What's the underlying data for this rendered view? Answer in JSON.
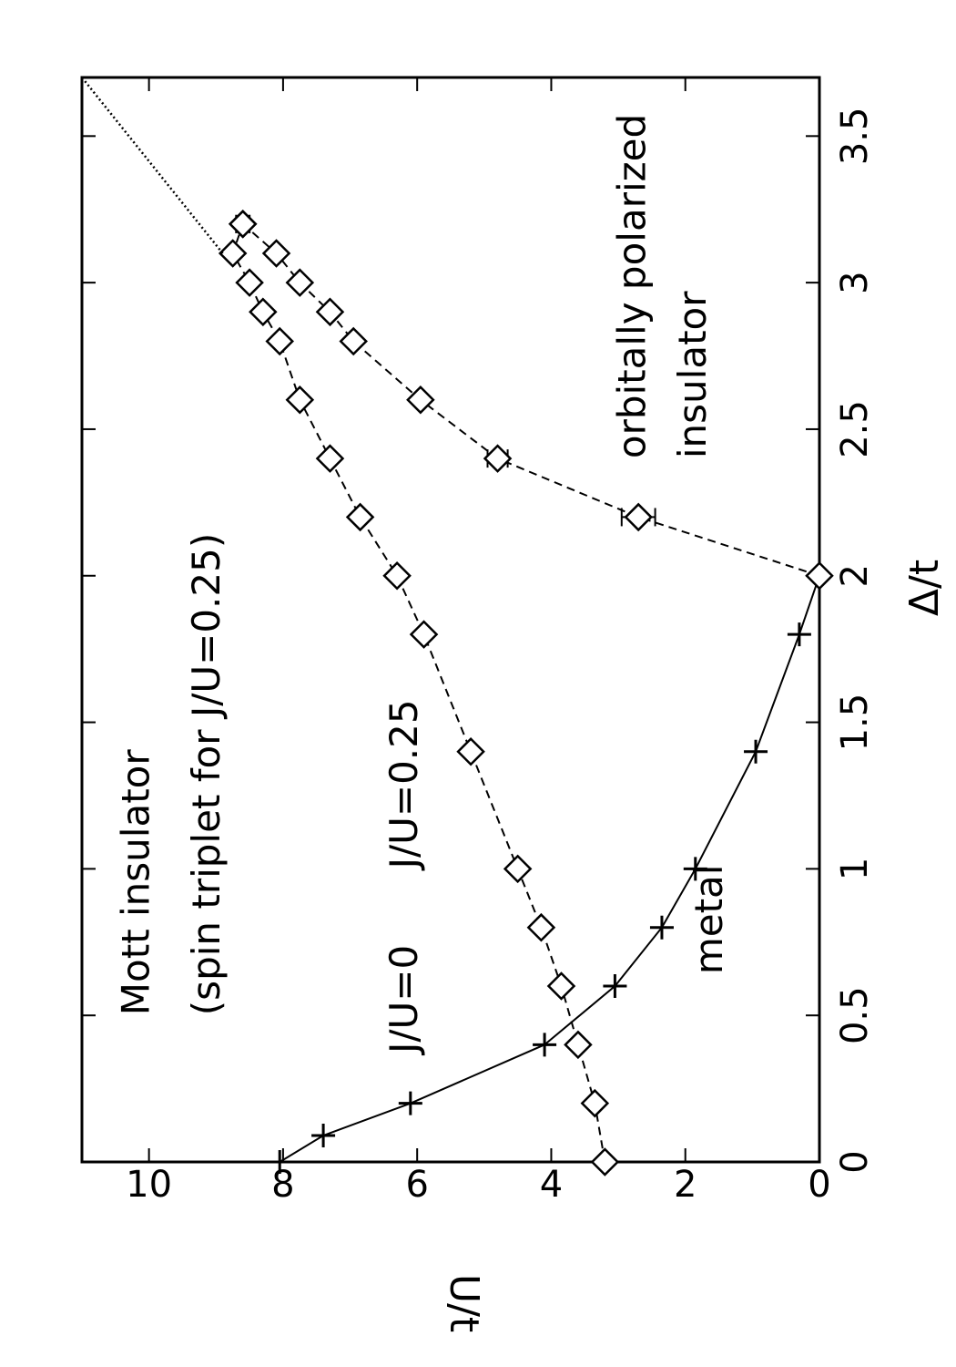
{
  "chart_data": {
    "type": "scatter",
    "xlabel": "Δ/t",
    "ylabel": "U/t",
    "xlim": [
      0,
      3.7
    ],
    "ylim": [
      0,
      11
    ],
    "x_ticks": [
      0,
      0.5,
      1,
      1.5,
      2,
      2.5,
      3,
      3.5
    ],
    "y_ticks": [
      0,
      2,
      4,
      6,
      8,
      10
    ],
    "grid": false,
    "annotations": [
      {
        "text": "Mott insulator",
        "x": 0.5,
        "y": 10.0
      },
      {
        "text": "(spin triplet for J/U=0.25)",
        "x": 0.5,
        "y": 8.95
      },
      {
        "text": "J/U=0",
        "x": 0.37,
        "y": 6.0
      },
      {
        "text": "J/U=0.25",
        "x": 1.0,
        "y": 6.0
      },
      {
        "text": "metal",
        "x": 0.64,
        "y": 1.45
      },
      {
        "text": "orbitally polarized",
        "x": 2.4,
        "y": 2.6
      },
      {
        "text": "insulator",
        "x": 2.4,
        "y": 1.7
      }
    ],
    "series": [
      {
        "key": "j0",
        "marker": "plus",
        "line": "solid",
        "x": [
          0,
          0.09,
          0.2,
          0.4,
          0.6,
          0.8,
          1.0,
          1.4,
          1.8,
          2.0
        ],
        "y": [
          8.05,
          7.4,
          6.1,
          4.1,
          3.05,
          2.35,
          1.85,
          0.95,
          0.3,
          0
        ],
        "yerr": [
          0,
          0,
          0,
          0,
          0,
          0,
          0,
          0,
          0,
          0
        ]
      },
      {
        "key": "j025_upper",
        "marker": "diamond",
        "line": "dashed",
        "x": [
          0,
          0.2,
          0.4,
          0.6,
          0.8,
          1.0,
          1.4,
          1.8,
          2.0,
          2.2,
          2.4,
          2.6,
          2.8,
          2.9,
          3.0,
          3.1,
          3.2
        ],
        "y": [
          3.2,
          3.35,
          3.6,
          3.85,
          4.15,
          4.5,
          5.2,
          5.9,
          6.3,
          6.85,
          7.3,
          7.75,
          8.05,
          8.3,
          8.5,
          8.75,
          8.6
        ],
        "yerr": [
          0,
          0,
          0,
          0,
          0,
          0,
          0,
          0,
          0,
          0,
          0,
          0,
          0,
          0,
          0,
          0,
          0.1
        ]
      },
      {
        "key": "j025_lower",
        "marker": "diamond",
        "line": "dashed",
        "x": [
          2.0,
          2.2,
          2.4,
          2.6,
          2.8,
          2.9,
          3.0,
          3.1,
          3.2
        ],
        "y": [
          0,
          2.7,
          4.8,
          5.95,
          6.95,
          7.3,
          7.75,
          8.1,
          8.6
        ],
        "yerr": [
          0,
          0.25,
          0.15,
          0,
          0,
          0,
          0,
          0,
          0.1
        ]
      },
      {
        "key": "extrapolation",
        "marker": "none",
        "line": "dotted",
        "x": [
          3.1,
          3.7
        ],
        "y": [
          8.9,
          11.0
        ],
        "yerr": []
      }
    ]
  }
}
